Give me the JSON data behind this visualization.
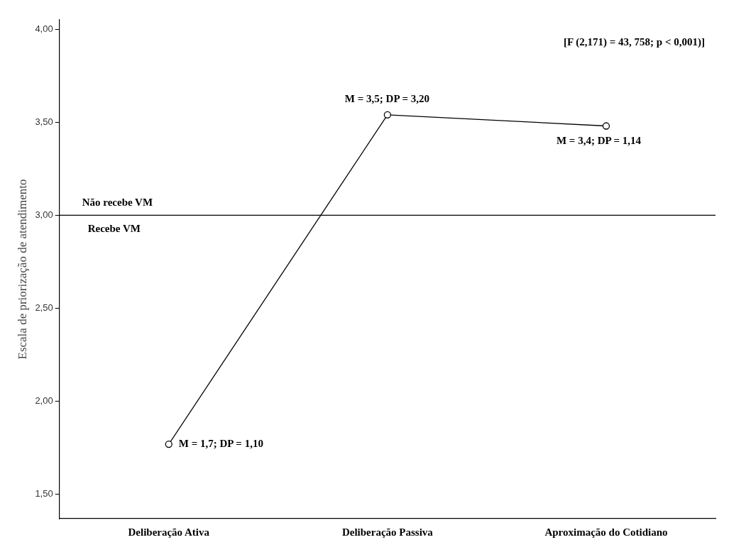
{
  "chart_data": {
    "type": "line",
    "ylabel": "Escala de priorização de atendimento",
    "categories": [
      "Deliberação Ativa",
      "Deliberação Passiva",
      "Aproximação do Cotidiano"
    ],
    "series": [
      {
        "color": "#000000",
        "values": [
          1.77,
          3.54,
          3.48
        ]
      }
    ],
    "ylim": [
      1.37,
      4.05
    ],
    "yticks": [
      {
        "value": 1.5,
        "label": "1,50"
      },
      {
        "value": 2,
        "label": "2,00"
      },
      {
        "value": 2.5,
        "label": "2,50"
      },
      {
        "value": 3,
        "label": "3,00"
      },
      {
        "value": 3.5,
        "label": "3,50"
      },
      {
        "value": 4,
        "label": "4,00"
      }
    ],
    "marker": "circle",
    "line_style": "solid",
    "grid": false,
    "legend": false,
    "ref_lines": [
      {
        "axis": "y",
        "value": 3,
        "label": "Não recebe VM",
        "color": "#000000"
      }
    ],
    "annotations": [
      "[F (2,171) = 43, 758; p < 0,001)]",
      {
        "text": "Recebe VM",
        "y": 3
      },
      {
        "text": "M = 1,7; DP = 1,10",
        "x": "Deliberação Ativa",
        "y": 1.77
      },
      {
        "text": "M = 3,5; DP = 3,20",
        "x": "Deliberação Passiva",
        "y": 3.54
      },
      {
        "text": "M = 3,4; DP = 1,14",
        "x": "Aproximação do Cotidiano",
        "y": 3.48
      }
    ]
  }
}
